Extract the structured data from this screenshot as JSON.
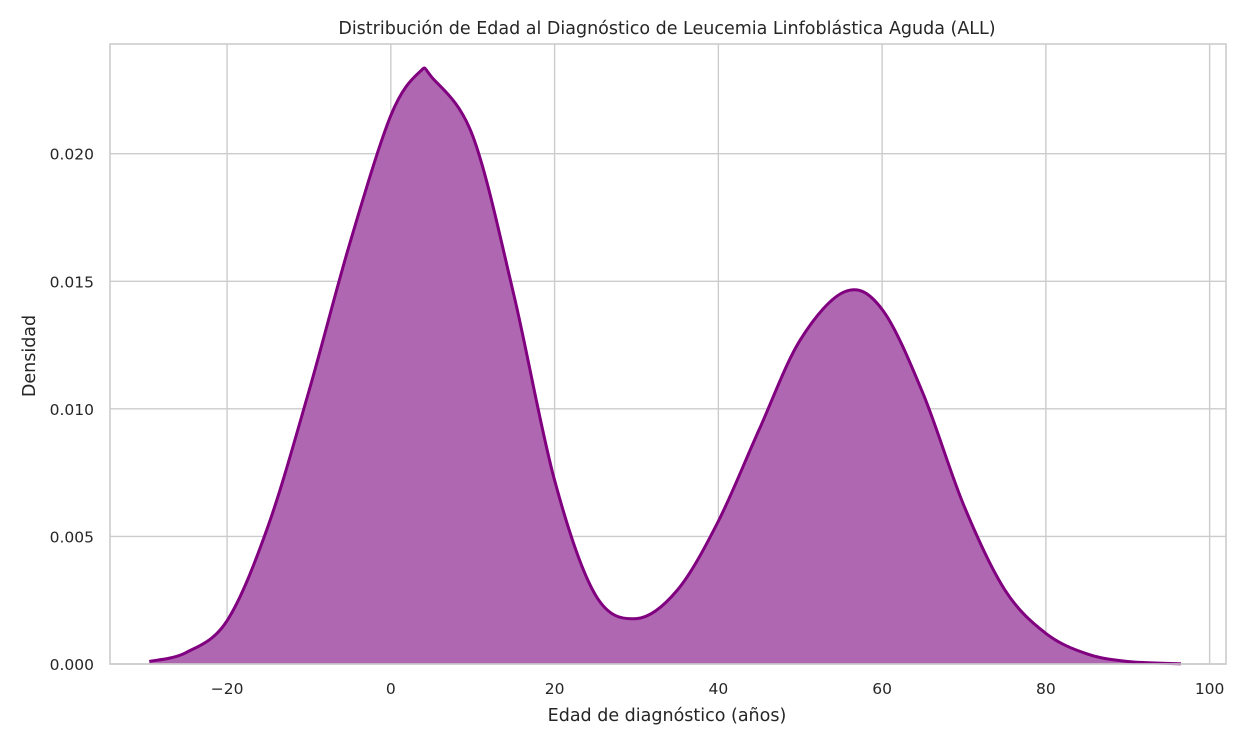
{
  "chart_data": {
    "type": "area",
    "title": "Distribución de Edad al Diagnóstico de Leucemia Linfoblástica Aguda (ALL)",
    "xlabel": "Edad de diagnóstico (años)",
    "ylabel": "Densidad",
    "xlim": [
      -34.3,
      102
    ],
    "ylim": [
      0,
      0.0243
    ],
    "grid": true,
    "x_ticks": [
      -20,
      0,
      20,
      40,
      60,
      80,
      100
    ],
    "x_tick_labels": [
      "−20",
      "0",
      "20",
      "40",
      "60",
      "80",
      "100"
    ],
    "y_ticks": [
      0.0,
      0.005,
      0.01,
      0.015,
      0.02
    ],
    "y_tick_labels": [
      "0.000",
      "0.005",
      "0.010",
      "0.015",
      "0.020"
    ],
    "series": [
      {
        "fill_color": "#b067b1",
        "line_color": "#800080",
        "x": [
          -29.5,
          -25,
          -20,
          -15,
          -10,
          -5,
          0,
          3.5,
          5,
          10,
          15,
          20,
          25,
          30,
          35,
          40,
          45,
          50,
          55.5,
          60,
          65,
          70,
          75,
          80,
          85,
          90,
          96.5
        ],
        "y": [
          0.0001,
          0.00045,
          0.0017,
          0.0054,
          0.0107,
          0.0165,
          0.0215,
          0.0232,
          0.023,
          0.0207,
          0.0145,
          0.0072,
          0.0027,
          0.00178,
          0.0029,
          0.0056,
          0.0092,
          0.0127,
          0.0146,
          0.0139,
          0.0106,
          0.0062,
          0.0029,
          0.0012,
          0.0004,
          0.0001,
          1e-05
        ]
      }
    ]
  }
}
